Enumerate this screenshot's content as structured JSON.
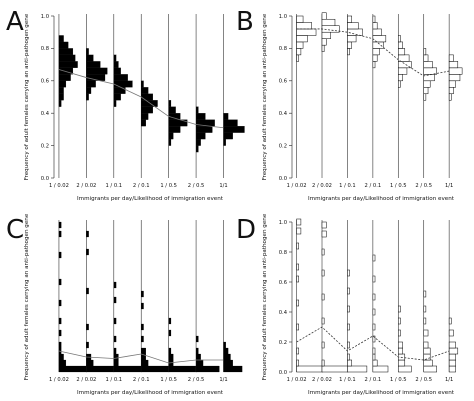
{
  "figure": {
    "y_axis_label": "Frequency of adult females carrying an anti-pathogen gene",
    "x_axis_label": "Immigrants per day/Likelihood of immigration event"
  },
  "chart_data": [
    {
      "panel": "A",
      "type": "violin-histogram",
      "style": "filled",
      "ylim": [
        0,
        1
      ],
      "yticks": [
        "0.0",
        "0.2",
        "0.4",
        "0.6",
        "0.8",
        "1.0"
      ],
      "categories": [
        "1 / 0.02",
        "2 / 0.02",
        "1 / 0.1",
        "2 / 0.1",
        "1 / 0.5",
        "2 / 0.5",
        "1/1"
      ],
      "trend": [
        0.67,
        0.62,
        0.58,
        0.5,
        0.38,
        0.33,
        0.31
      ],
      "distributions": [
        {
          "bins": [
            [
              0.46,
              1
            ],
            [
              0.5,
              2
            ],
            [
              0.54,
              2
            ],
            [
              0.58,
              3
            ],
            [
              0.62,
              5
            ],
            [
              0.66,
              6
            ],
            [
              0.7,
              8
            ],
            [
              0.74,
              7
            ],
            [
              0.78,
              6
            ],
            [
              0.82,
              4
            ],
            [
              0.86,
              2
            ]
          ]
        },
        {
          "bins": [
            [
              0.5,
              1
            ],
            [
              0.54,
              2
            ],
            [
              0.58,
              4
            ],
            [
              0.62,
              8
            ],
            [
              0.66,
              9
            ],
            [
              0.7,
              6
            ],
            [
              0.74,
              3
            ],
            [
              0.78,
              1
            ]
          ]
        },
        {
          "bins": [
            [
              0.46,
              1
            ],
            [
              0.5,
              3
            ],
            [
              0.54,
              5
            ],
            [
              0.58,
              8
            ],
            [
              0.62,
              6
            ],
            [
              0.66,
              3
            ],
            [
              0.7,
              2
            ],
            [
              0.74,
              1
            ]
          ]
        },
        {
          "bins": [
            [
              0.34,
              2
            ],
            [
              0.38,
              3
            ],
            [
              0.42,
              5
            ],
            [
              0.46,
              7
            ],
            [
              0.5,
              5
            ],
            [
              0.54,
              3
            ],
            [
              0.58,
              1
            ]
          ]
        },
        {
          "bins": [
            [
              0.22,
              1
            ],
            [
              0.26,
              2
            ],
            [
              0.3,
              5
            ],
            [
              0.34,
              8
            ],
            [
              0.38,
              5
            ],
            [
              0.42,
              3
            ],
            [
              0.46,
              1
            ]
          ]
        },
        {
          "bins": [
            [
              0.18,
              1
            ],
            [
              0.22,
              2
            ],
            [
              0.26,
              4
            ],
            [
              0.3,
              7
            ],
            [
              0.34,
              8
            ],
            [
              0.38,
              4
            ],
            [
              0.42,
              1
            ]
          ]
        },
        {
          "bins": [
            [
              0.22,
              1
            ],
            [
              0.26,
              4
            ],
            [
              0.3,
              9
            ],
            [
              0.34,
              6
            ],
            [
              0.38,
              2
            ]
          ]
        }
      ]
    },
    {
      "panel": "B",
      "type": "violin-histogram",
      "style": "outline",
      "ylim": [
        0,
        1
      ],
      "yticks": [
        "0.0",
        "0.2",
        "0.4",
        "0.6",
        "0.8",
        "1.0"
      ],
      "categories": [
        "1 / 0.02",
        "2 / 0.02",
        "1 / 0.1",
        "2 / 0.1",
        "1 / 0.5",
        "2 / 0.5",
        "1/1"
      ],
      "trend": [
        0.92,
        0.92,
        0.9,
        0.86,
        0.73,
        0.63,
        0.66
      ],
      "distributions": [
        {
          "bins": [
            [
              0.74,
              1
            ],
            [
              0.78,
              2
            ],
            [
              0.82,
              3
            ],
            [
              0.86,
              5
            ],
            [
              0.9,
              9
            ],
            [
              0.94,
              7
            ],
            [
              0.98,
              3
            ]
          ]
        },
        {
          "bins": [
            [
              0.8,
              1
            ],
            [
              0.84,
              2
            ],
            [
              0.88,
              4
            ],
            [
              0.92,
              8
            ],
            [
              0.96,
              6
            ],
            [
              1.0,
              2
            ]
          ]
        },
        {
          "bins": [
            [
              0.78,
              1
            ],
            [
              0.82,
              2
            ],
            [
              0.86,
              4
            ],
            [
              0.9,
              7
            ],
            [
              0.94,
              5
            ],
            [
              0.98,
              2
            ]
          ]
        },
        {
          "bins": [
            [
              0.7,
              1
            ],
            [
              0.74,
              2
            ],
            [
              0.78,
              3
            ],
            [
              0.82,
              5
            ],
            [
              0.86,
              6
            ],
            [
              0.9,
              4
            ],
            [
              0.94,
              2
            ],
            [
              0.98,
              1
            ]
          ]
        },
        {
          "bins": [
            [
              0.58,
              1
            ],
            [
              0.62,
              2
            ],
            [
              0.66,
              4
            ],
            [
              0.7,
              6
            ],
            [
              0.74,
              5
            ],
            [
              0.78,
              3
            ],
            [
              0.82,
              2
            ],
            [
              0.86,
              1
            ]
          ]
        },
        {
          "bins": [
            [
              0.5,
              1
            ],
            [
              0.54,
              2
            ],
            [
              0.58,
              3
            ],
            [
              0.62,
              5
            ],
            [
              0.66,
              6
            ],
            [
              0.7,
              4
            ],
            [
              0.74,
              2
            ],
            [
              0.78,
              1
            ]
          ]
        },
        {
          "bins": [
            [
              0.5,
              1
            ],
            [
              0.54,
              2
            ],
            [
              0.58,
              3
            ],
            [
              0.62,
              5
            ],
            [
              0.66,
              6
            ],
            [
              0.7,
              4
            ],
            [
              0.74,
              2
            ]
          ]
        }
      ]
    },
    {
      "panel": "C",
      "type": "violin-histogram",
      "style": "filled",
      "ylim": [
        0,
        1
      ],
      "yticks": [],
      "categories": [
        "1 / 0.02",
        "2 / 0.02",
        "1 / 0.1",
        "2 / 0.1",
        "1 / 0.5",
        "2 / 0.5",
        "1/1"
      ],
      "trend": [
        0.14,
        0.1,
        0.09,
        0.12,
        0.06,
        0.08,
        0.08
      ],
      "distributions": [
        {
          "bins": [
            [
              0.02,
              12
            ],
            [
              0.06,
              3
            ],
            [
              0.1,
              2
            ],
            [
              0.14,
              1
            ],
            [
              0.18,
              1
            ],
            [
              0.26,
              1
            ],
            [
              0.34,
              1
            ],
            [
              0.46,
              1
            ],
            [
              0.6,
              1
            ],
            [
              0.78,
              1
            ],
            [
              0.92,
              1
            ],
            [
              0.98,
              1
            ]
          ]
        },
        {
          "bins": [
            [
              0.02,
              12
            ],
            [
              0.06,
              3
            ],
            [
              0.1,
              2
            ],
            [
              0.18,
              1
            ],
            [
              0.3,
              1
            ],
            [
              0.54,
              1
            ],
            [
              0.8,
              1
            ],
            [
              0.92,
              1
            ]
          ]
        },
        {
          "bins": [
            [
              0.02,
              12
            ],
            [
              0.06,
              2
            ],
            [
              0.1,
              2
            ],
            [
              0.14,
              1
            ],
            [
              0.22,
              1
            ],
            [
              0.34,
              1
            ],
            [
              0.48,
              1
            ],
            [
              0.58,
              1
            ]
          ]
        },
        {
          "bins": [
            [
              0.02,
              12
            ],
            [
              0.06,
              3
            ],
            [
              0.1,
              2
            ],
            [
              0.14,
              2
            ],
            [
              0.22,
              1
            ],
            [
              0.3,
              1
            ],
            [
              0.44,
              1
            ],
            [
              0.52,
              1
            ]
          ]
        },
        {
          "bins": [
            [
              0.02,
              12
            ],
            [
              0.06,
              2
            ],
            [
              0.1,
              2
            ],
            [
              0.14,
              1
            ],
            [
              0.26,
              1
            ],
            [
              0.34,
              1
            ]
          ]
        },
        {
          "bins": [
            [
              0.02,
              10
            ],
            [
              0.06,
              3
            ],
            [
              0.1,
              2
            ],
            [
              0.14,
              1
            ],
            [
              0.22,
              1
            ]
          ]
        },
        {
          "bins": [
            [
              0.02,
              8
            ],
            [
              0.06,
              4
            ],
            [
              0.1,
              3
            ],
            [
              0.14,
              2
            ],
            [
              0.18,
              1
            ]
          ]
        }
      ]
    },
    {
      "panel": "D",
      "type": "violin-histogram",
      "style": "outline",
      "ylim": [
        0,
        1
      ],
      "yticks": [
        "0.0",
        "0.2",
        "0.4",
        "0.6",
        "0.8",
        "1.0"
      ],
      "categories": [
        "1 / 0.02",
        "2 / 0.02",
        "1 / 0.1",
        "2 / 0.1",
        "1 / 0.5",
        "2 / 0.5",
        "1/1"
      ],
      "trend": [
        0.2,
        0.3,
        0.14,
        0.24,
        0.1,
        0.08,
        0.14
      ],
      "distributions": [
        {
          "bins": [
            [
              0.02,
              12
            ],
            [
              0.06,
              1
            ],
            [
              0.14,
              1
            ],
            [
              0.3,
              1
            ],
            [
              0.46,
              1
            ],
            [
              0.62,
              1
            ],
            [
              0.7,
              1
            ],
            [
              0.84,
              1
            ],
            [
              0.94,
              2
            ],
            [
              1.0,
              2
            ]
          ]
        },
        {
          "bins": [
            [
              0.02,
              12
            ],
            [
              0.06,
              1
            ],
            [
              0.18,
              1
            ],
            [
              0.34,
              1
            ],
            [
              0.5,
              1
            ],
            [
              0.66,
              1
            ],
            [
              0.8,
              1
            ],
            [
              0.92,
              2
            ],
            [
              0.98,
              2
            ]
          ]
        },
        {
          "bins": [
            [
              0.02,
              9
            ],
            [
              0.06,
              2
            ],
            [
              0.1,
              1
            ],
            [
              0.18,
              1
            ],
            [
              0.3,
              1
            ],
            [
              0.42,
              1
            ],
            [
              0.54,
              1
            ],
            [
              0.66,
              1
            ]
          ]
        },
        {
          "bins": [
            [
              0.02,
              7
            ],
            [
              0.06,
              2
            ],
            [
              0.1,
              1
            ],
            [
              0.14,
              1
            ],
            [
              0.22,
              1
            ],
            [
              0.3,
              1
            ],
            [
              0.4,
              1
            ],
            [
              0.5,
              1
            ],
            [
              0.62,
              1
            ],
            [
              0.76,
              1
            ]
          ]
        },
        {
          "bins": [
            [
              0.02,
              6
            ],
            [
              0.06,
              3
            ],
            [
              0.1,
              3
            ],
            [
              0.14,
              2
            ],
            [
              0.18,
              2
            ],
            [
              0.26,
              1
            ],
            [
              0.34,
              1
            ],
            [
              0.42,
              1
            ]
          ]
        },
        {
          "bins": [
            [
              0.02,
              6
            ],
            [
              0.06,
              4
            ],
            [
              0.1,
              3
            ],
            [
              0.14,
              3
            ],
            [
              0.18,
              2
            ],
            [
              0.26,
              2
            ],
            [
              0.34,
              1
            ],
            [
              0.42,
              1
            ],
            [
              0.52,
              1
            ]
          ]
        },
        {
          "bins": [
            [
              0.02,
              3
            ],
            [
              0.06,
              3
            ],
            [
              0.1,
              3
            ],
            [
              0.14,
              4
            ],
            [
              0.18,
              3
            ],
            [
              0.26,
              2
            ],
            [
              0.34,
              1
            ]
          ]
        }
      ]
    }
  ]
}
